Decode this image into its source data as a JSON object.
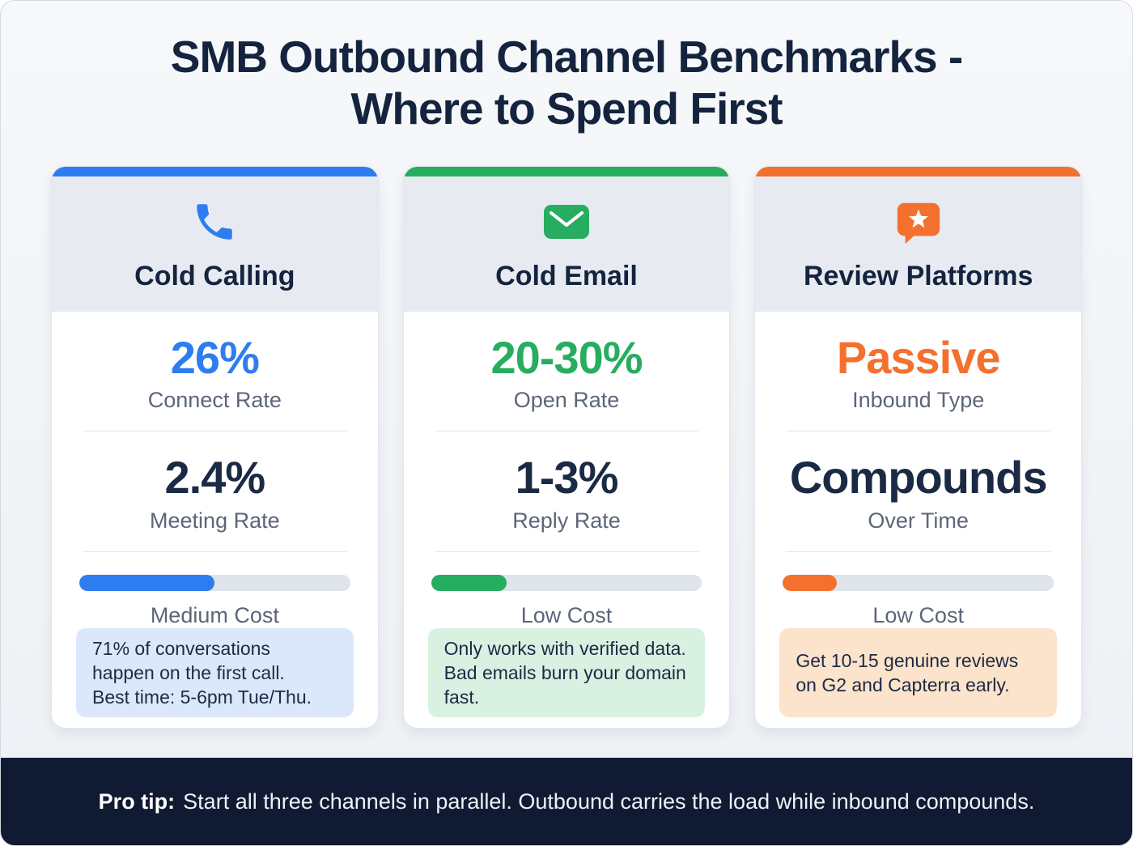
{
  "header": {
    "title_line1": "SMB Outbound Channel Benchmarks -",
    "title_line2": "Where to Spend First"
  },
  "cards": [
    {
      "id": "cold-calling",
      "title": "Cold Calling",
      "icon": "phone-icon",
      "accent_color": "#2e7df0",
      "stat_primary": {
        "value": "26%",
        "label": "Connect Rate"
      },
      "stat_secondary": {
        "value": "2.4%",
        "label": "Meeting Rate"
      },
      "cost": {
        "label": "Medium Cost",
        "fill_percent": 50,
        "bar_color": "#2e7df0"
      },
      "note": {
        "bg_color": "#dbe7fb",
        "lines": [
          "71% of conversations happen on the first call.",
          "Best time: 5-6pm Tue/Thu."
        ]
      }
    },
    {
      "id": "cold-email",
      "title": "Cold Email",
      "icon": "envelope-icon",
      "accent_color": "#27ad5f",
      "stat_primary": {
        "value": "20-30%",
        "label": "Open Rate"
      },
      "stat_secondary": {
        "value": "1-3%",
        "label": "Reply Rate"
      },
      "cost": {
        "label": "Low Cost",
        "fill_percent": 28,
        "bar_color": "#27ad5f"
      },
      "note": {
        "bg_color": "#d8f1e1",
        "lines": [
          "Only works with verified data. Bad emails burn your domain fast."
        ]
      }
    },
    {
      "id": "review-platforms",
      "title": "Review Platforms",
      "icon": "review-star-bubble-icon",
      "accent_color": "#f4702e",
      "stat_primary": {
        "value": "Passive",
        "label": "Inbound Type"
      },
      "stat_secondary": {
        "value": "Compounds",
        "label": "Over Time"
      },
      "cost": {
        "label": "Low Cost",
        "fill_percent": 20,
        "bar_color": "#f4702e"
      },
      "note": {
        "bg_color": "#fce3cb",
        "lines": [
          "Get 10-15 genuine reviews on G2 and Capterra early."
        ]
      }
    }
  ],
  "footer": {
    "prefix": "Pro tip:",
    "text": "Start all three channels in parallel. Outbound carries the load while inbound compounds."
  }
}
